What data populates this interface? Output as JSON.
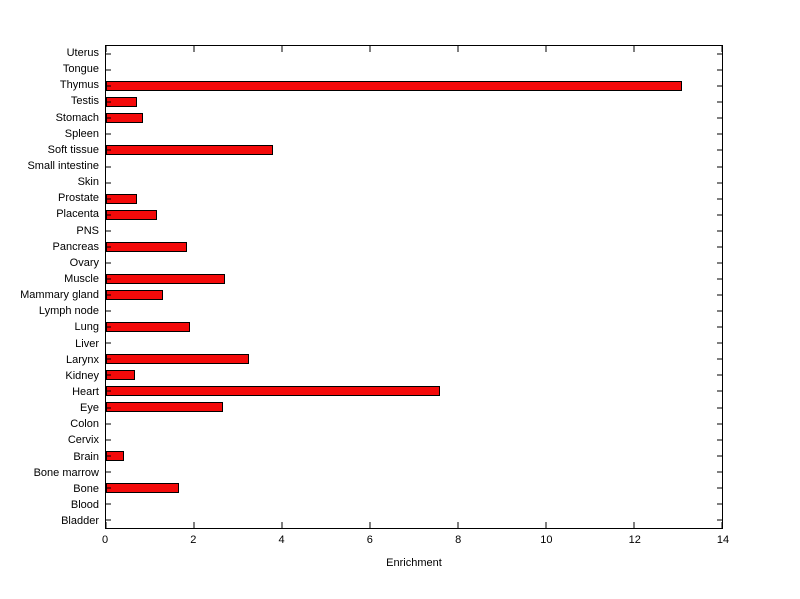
{
  "chart_data": {
    "type": "bar",
    "orientation": "horizontal",
    "title": "",
    "xlabel": "Enrichment",
    "ylabel": "",
    "xlim": [
      0,
      14
    ],
    "xticks": [
      0,
      2,
      4,
      6,
      8,
      10,
      12,
      14
    ],
    "grid": false,
    "legend": null,
    "bar_color": "#f40a0a",
    "bar_edge_color": "#000000",
    "axis_color": "#000000",
    "background_color": "#ffffff",
    "categories": [
      "Uterus",
      "Tongue",
      "Thymus",
      "Testis",
      "Stomach",
      "Spleen",
      "Soft tissue",
      "Small intestine",
      "Skin",
      "Prostate",
      "Placenta",
      "PNS",
      "Pancreas",
      "Ovary",
      "Muscle",
      "Mammary gland",
      "Lymph node",
      "Lung",
      "Liver",
      "Larynx",
      "Kidney",
      "Heart",
      "Eye",
      "Colon",
      "Cervix",
      "Brain",
      "Bone marrow",
      "Bone",
      "Blood",
      "Bladder"
    ],
    "values": [
      0,
      0,
      13.1,
      0.7,
      0.85,
      0,
      3.8,
      0,
      0,
      0.7,
      1.15,
      0,
      1.85,
      0,
      2.7,
      1.3,
      0,
      1.9,
      0,
      3.25,
      0.65,
      7.6,
      2.65,
      0,
      0,
      0.4,
      0,
      1.65,
      0,
      0
    ]
  }
}
